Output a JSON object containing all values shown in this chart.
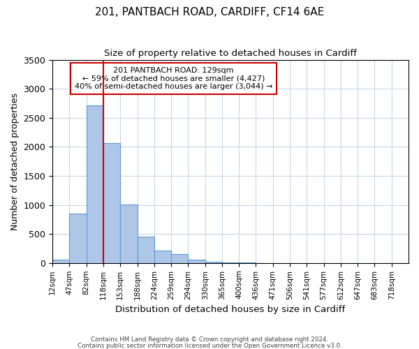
{
  "title": "201, PANTBACH ROAD, CARDIFF, CF14 6AE",
  "subtitle": "Size of property relative to detached houses in Cardiff",
  "xlabel": "Distribution of detached houses by size in Cardiff",
  "ylabel": "Number of detached properties",
  "bin_labels": [
    "12sqm",
    "47sqm",
    "82sqm",
    "118sqm",
    "153sqm",
    "188sqm",
    "224sqm",
    "259sqm",
    "294sqm",
    "330sqm",
    "365sqm",
    "400sqm",
    "436sqm",
    "471sqm",
    "506sqm",
    "541sqm",
    "577sqm",
    "612sqm",
    "647sqm",
    "683sqm",
    "718sqm"
  ],
  "bar_values": [
    55,
    850,
    2710,
    2060,
    1010,
    460,
    215,
    155,
    55,
    20,
    10,
    5,
    2,
    1,
    0,
    0,
    0,
    0,
    0,
    0,
    0
  ],
  "bar_color": "#aec6e8",
  "bar_edge_color": "#5b9bd5",
  "ylim": [
    0,
    3500
  ],
  "yticks": [
    0,
    500,
    1000,
    1500,
    2000,
    2500,
    3000,
    3500
  ],
  "property_line_x": 3,
  "property_line_color": "#cc0000",
  "annotation_title": "201 PANTBACH ROAD: 129sqm",
  "annotation_line1": "← 59% of detached houses are smaller (4,427)",
  "annotation_line2": "40% of semi-detached houses are larger (3,044) →",
  "annotation_box_color": "#cc0000",
  "footnote1": "Contains HM Land Registry data © Crown copyright and database right 2024.",
  "footnote2": "Contains public sector information licensed under the Open Government Licence v3.0.",
  "background_color": "#ffffff",
  "grid_color": "#c8d8e8"
}
